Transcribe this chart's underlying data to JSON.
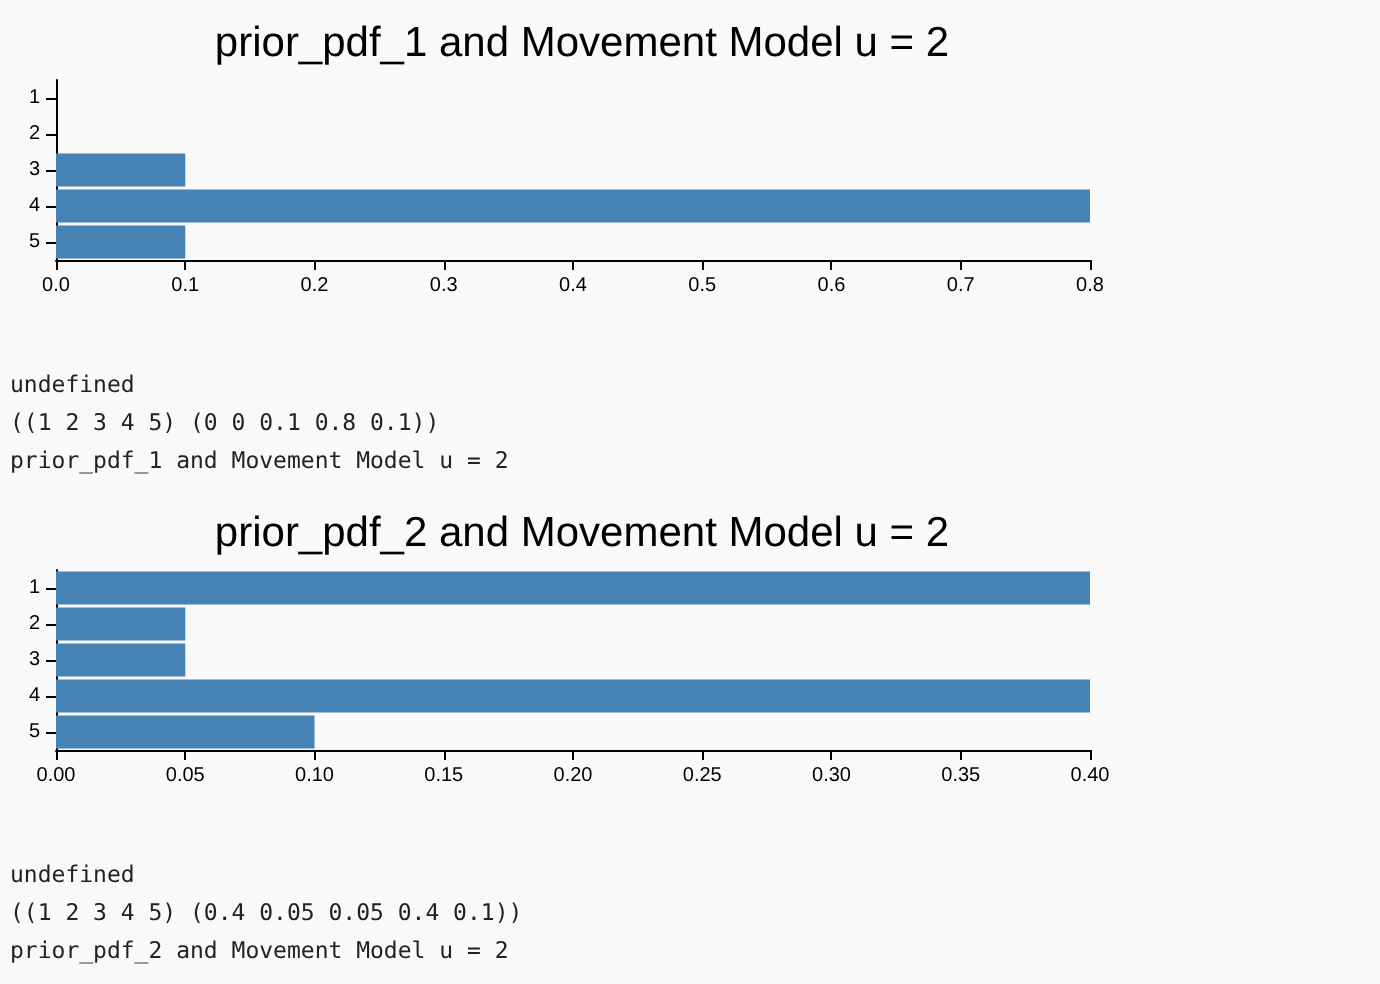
{
  "chart_data": [
    {
      "type": "bar",
      "orientation": "horizontal",
      "title": "prior_pdf_1 and Movement Model u = 2",
      "categories": [
        "1",
        "2",
        "3",
        "4",
        "5"
      ],
      "values": [
        0,
        0,
        0.1,
        0.8,
        0.1
      ],
      "color": "#4682b4",
      "xlim": [
        0,
        0.8
      ],
      "xticks": [
        {
          "value": 0,
          "label": "0.0"
        },
        0.1,
        0.2,
        0.3,
        0.4,
        0.5,
        0.6,
        0.7,
        0.8
      ],
      "grid": false,
      "annotations": [
        "undefined",
        "((1 2 3 4 5) (0 0 0.1 0.8 0.1))",
        "prior_pdf_1 and Movement Model u = 2"
      ]
    },
    {
      "type": "bar",
      "orientation": "horizontal",
      "title": "prior_pdf_2 and Movement Model u = 2",
      "categories": [
        "1",
        "2",
        "3",
        "4",
        "5"
      ],
      "values": [
        0.4,
        0.05,
        0.05,
        0.4,
        0.1
      ],
      "color": "#4682b4",
      "xlim": [
        0,
        0.4
      ],
      "xticks": [
        {
          "value": 0,
          "label": "0.00"
        },
        0.05,
        {
          "value": 0.1,
          "label": "0.10"
        },
        0.15,
        {
          "value": 0.2,
          "label": "0.20"
        },
        0.25,
        {
          "value": 0.3,
          "label": "0.30"
        },
        0.35,
        {
          "value": 0.4,
          "label": "0.40"
        }
      ],
      "grid": false,
      "annotations": [
        "undefined",
        "((1 2 3 4 5) (0.4 0.05 0.05 0.4 0.1))",
        "prior_pdf_2 and Movement Model u = 2"
      ]
    }
  ]
}
